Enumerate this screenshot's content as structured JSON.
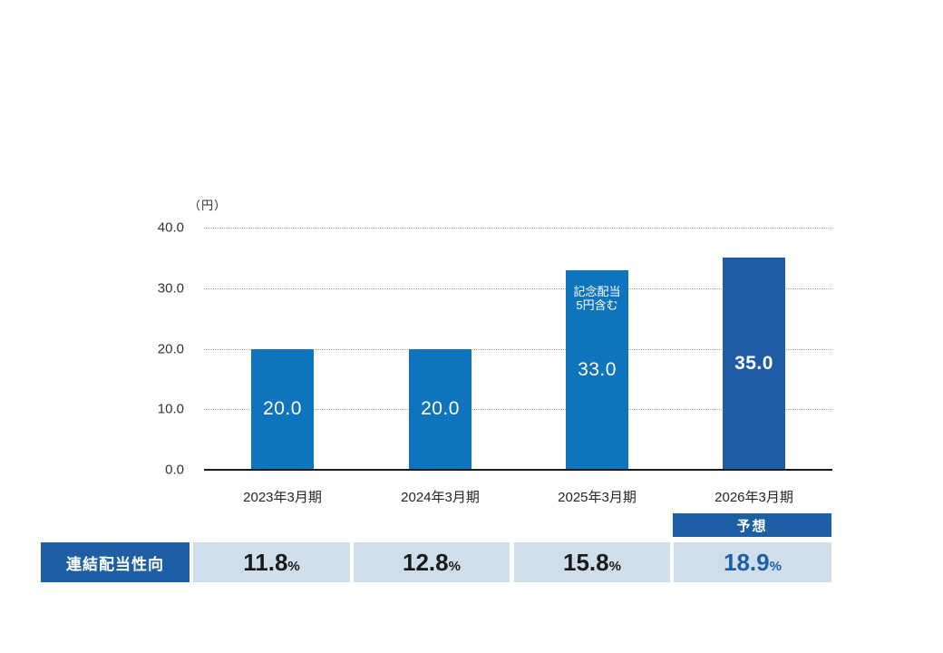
{
  "chart_data": {
    "type": "bar",
    "title": "",
    "unit_label": "（円）",
    "categories": [
      "2023年3月期",
      "2024年3月期",
      "2025年3月期",
      "2026年3月期"
    ],
    "values": [
      20.0,
      20.0,
      33.0,
      35.0
    ],
    "value_labels": [
      "20.0",
      "20.0",
      "33.0",
      "35.0"
    ],
    "emphasized_index": 3,
    "annotation": {
      "bar_index": 2,
      "lines": [
        "記念配当",
        "5円含む"
      ]
    },
    "forecast_badge": "予想",
    "y_axis": {
      "ticks": [
        "40.0",
        "30.0",
        "20.0",
        "10.0",
        "0.0"
      ],
      "tick_values": [
        40,
        30,
        20,
        10,
        0
      ],
      "ylim": [
        0,
        40
      ],
      "grid": "horizontal-dotted"
    },
    "legend": null
  },
  "table": {
    "header": "連結配当性向",
    "values": [
      "11.8",
      "12.8",
      "15.8",
      "18.9"
    ],
    "percent_sign": "%",
    "highlight_index": 3
  },
  "colors": {
    "bar_blue": "#0d74bd",
    "dark_blue": "#1e5ca6",
    "badge_blue": "#1c5fa5",
    "cell_light_blue": "#d0deec",
    "value_text_dark": "#1a1a1a",
    "value_text_blue": "#1c5fa5"
  }
}
